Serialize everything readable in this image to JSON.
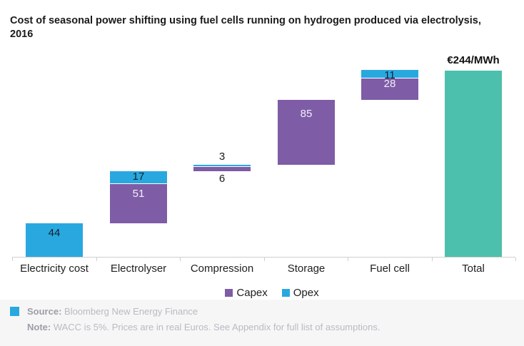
{
  "title_lines": [
    "Cost of seasonal power shifting using fuel cells running on hydrogen produced via electrolysis,",
    "2016"
  ],
  "colors": {
    "capex": "#7e5ca6",
    "opex": "#29a8e0",
    "total": "#4cc0ad",
    "axis": "#cfcfcf"
  },
  "chart_data": {
    "type": "bar",
    "subtype": "stacked-waterfall",
    "unit": "€/MWh",
    "grid": false,
    "ylim": [
      0,
      250
    ],
    "legend_position": "bottom",
    "categories": [
      "Electricity cost",
      "Electrolyser",
      "Compression",
      "Storage",
      "Fuel cell",
      "Total"
    ],
    "series": [
      {
        "name": "Capex",
        "color": "#7e5ca6",
        "values": [
          0,
          51,
          6,
          85,
          28,
          0
        ]
      },
      {
        "name": "Opex",
        "color": "#29a8e0",
        "values": [
          44,
          17,
          3,
          0,
          11,
          0
        ]
      }
    ],
    "total_value": 244,
    "total_annotation": "€244/MWh",
    "columns": [
      {
        "category": "Electricity cost",
        "segments": [
          {
            "series": "Opex",
            "value": 44,
            "label": "44",
            "label_style": "inside-dark"
          }
        ]
      },
      {
        "category": "Electrolyser",
        "segments": [
          {
            "series": "Capex",
            "value": 51,
            "label": "51",
            "label_style": "inside-light"
          },
          {
            "series": "Opex",
            "value": 17,
            "label": "17",
            "label_style": "inside-dark"
          }
        ]
      },
      {
        "category": "Compression",
        "segments": [
          {
            "series": "Capex",
            "value": 6,
            "label": "6",
            "label_style": "below"
          },
          {
            "series": "Opex",
            "value": 3,
            "label": "3",
            "label_style": "above"
          }
        ]
      },
      {
        "category": "Storage",
        "segments": [
          {
            "series": "Capex",
            "value": 85,
            "label": "85",
            "label_style": "inside-light"
          }
        ]
      },
      {
        "category": "Fuel cell",
        "segments": [
          {
            "series": "Capex",
            "value": 28,
            "label": "28",
            "label_style": "inside-light"
          },
          {
            "series": "Opex",
            "value": 11,
            "label": "11",
            "label_style": "inside-dark"
          }
        ]
      },
      {
        "category": "Total",
        "is_total": true,
        "annotation": "€244/MWh",
        "segments": [
          {
            "series": "Total",
            "value": 244,
            "label": "",
            "label_style": "none"
          }
        ]
      }
    ]
  },
  "legend": {
    "items": [
      {
        "label": "Capex",
        "color": "#7e5ca6"
      },
      {
        "label": "Opex",
        "color": "#29a8e0"
      }
    ]
  },
  "footer": {
    "source_label": "Source:",
    "source_text": " Bloomberg New Energy Finance",
    "note_label": "Note:",
    "note_text": " WACC is 5%. Prices are in real Euros. See Appendix for full list of assumptions."
  }
}
